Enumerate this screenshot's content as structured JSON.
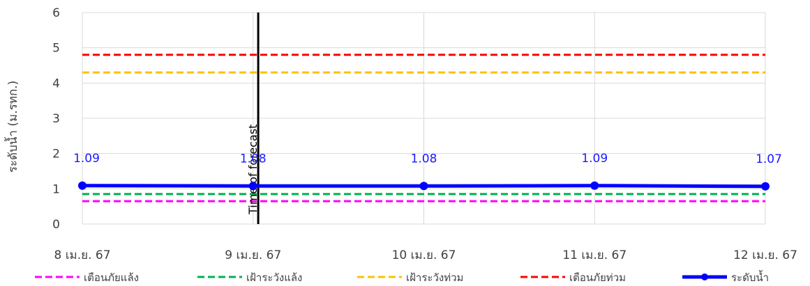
{
  "chart_data": {
    "type": "line",
    "ylabel": "ระดับน้ำ (ม.รทก.)",
    "ylim": [
      0,
      6
    ],
    "yticks": [
      0,
      1,
      2,
      3,
      4,
      5,
      6
    ],
    "categories": [
      "8 เม.ย. 67",
      "9 เม.ย. 67",
      "10 เม.ย. 67",
      "11 เม.ย. 67",
      "12 เม.ย. 67"
    ],
    "grid": true,
    "legend_position": "bottom",
    "reference_lines": [
      {
        "name": "เตือนภัยแล้ง",
        "value": 0.65,
        "color": "#ff00ff",
        "style": "dashed"
      },
      {
        "name": "เฝ้าระวังแล้ง",
        "value": 0.85,
        "color": "#00b050",
        "style": "dashed"
      },
      {
        "name": "เฝ้าระวังท่วม",
        "value": 4.3,
        "color": "#ffc000",
        "style": "dashed"
      },
      {
        "name": "เตือนภัยท่วม",
        "value": 4.8,
        "color": "#ff0000",
        "style": "dashed"
      }
    ],
    "series": [
      {
        "name": "ระดับน้ำ",
        "color": "#0000ff",
        "values": [
          1.09,
          1.08,
          1.08,
          1.09,
          1.07
        ],
        "data_labels": [
          "1.09",
          "1.08",
          "1.08",
          "1.09",
          "1.07"
        ]
      }
    ],
    "vertical_marker": {
      "label": "Time of forecast",
      "category_index": 1.03,
      "color": "#000000"
    },
    "legend_order": [
      "เตือนภัยแล้ง",
      "เฝ้าระวังแล้ง",
      "เฝ้าระวังท่วม",
      "เตือนภัยท่วม",
      "ระดับน้ำ"
    ]
  }
}
